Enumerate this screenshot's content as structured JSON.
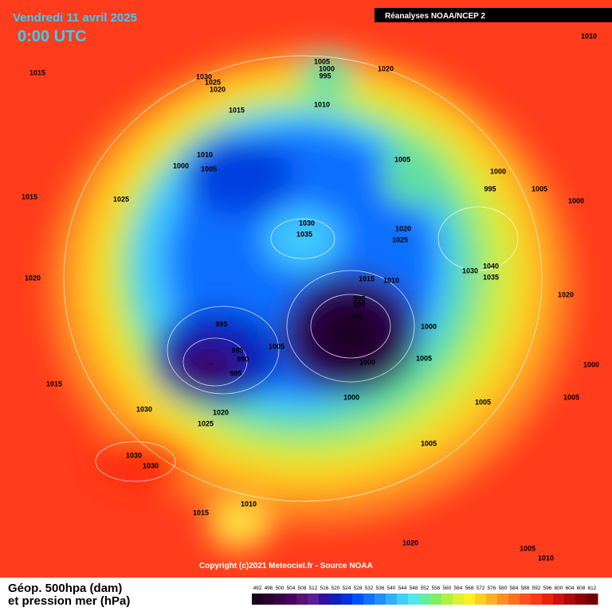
{
  "header": {
    "date": "Vendredi 11 avril 2025",
    "time": "0:00 UTC",
    "source": "Réanalyses NOAA/NCEP 2"
  },
  "isobars": [
    1010,
    1015,
    1030,
    1025,
    1020,
    1005,
    1000,
    995,
    1020,
    1010,
    1015,
    1010,
    1000,
    1005,
    1005,
    1000,
    995,
    1005,
    1000,
    1015,
    1025,
    1030,
    1035,
    1020,
    1025,
    1040,
    1030,
    1035,
    1020,
    1015,
    1010,
    995,
    990,
    985,
    995,
    1000,
    1020,
    985,
    990,
    1005,
    985,
    1000,
    1005,
    1000,
    1015,
    1000,
    1005,
    1005,
    1030,
    1020,
    1025,
    1005,
    1030,
    1030,
    1010,
    1015,
    1020,
    1005,
    1010
  ],
  "footer": {
    "copyright": "Copyright (c)2021 Meteociel.fr - Source NOAA",
    "legend_title_1": "Géop. 500hpa (dam)",
    "legend_title_2": "et pression mer (hPa)"
  },
  "legend": {
    "ticks": [
      492,
      496,
      500,
      504,
      508,
      512,
      516,
      520,
      524,
      528,
      532,
      536,
      540,
      544,
      548,
      552,
      556,
      560,
      564,
      568,
      572,
      576,
      580,
      584,
      588,
      592,
      596,
      600,
      604,
      608,
      612
    ],
    "colors": [
      "#1a0020",
      "#2a0030",
      "#3a0045",
      "#4a0060",
      "#5a1075",
      "#5a2090",
      "#3010a0",
      "#1020c0",
      "#0030e0",
      "#0050ff",
      "#1070ff",
      "#2090ff",
      "#30b0ff",
      "#40d0ff",
      "#50e8e8",
      "#60f0a0",
      "#80f060",
      "#b0f040",
      "#e0f030",
      "#fff020",
      "#ffd020",
      "#ffb020",
      "#ff9020",
      "#ff7020",
      "#ff5020",
      "#ff3818",
      "#f02010",
      "#d01010",
      "#b00808",
      "#900000",
      "#700000"
    ]
  }
}
